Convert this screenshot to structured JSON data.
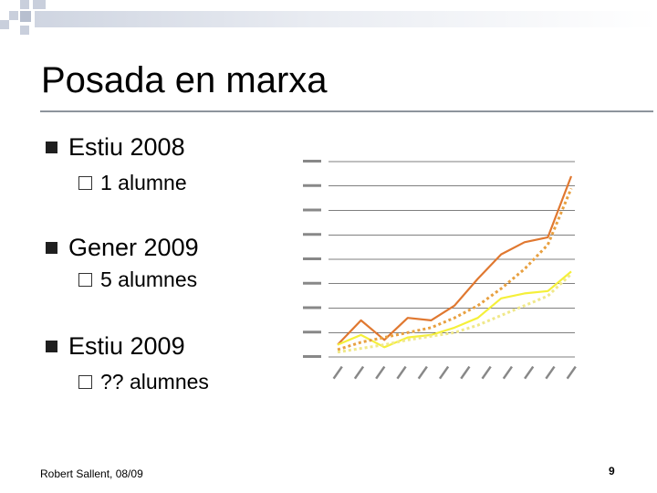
{
  "slide": {
    "title": "Posada en marxa",
    "bullets": [
      {
        "text": "Estiu 2008",
        "sub": "1 alumne"
      },
      {
        "text": "Gener 2009",
        "sub": "5 alumnes"
      },
      {
        "text": "Estiu 2009",
        "sub": "?? alumnes"
      }
    ],
    "footer": "Robert Sallent,  08/09",
    "page_number": "9"
  },
  "colors": {
    "orange": "#e07830",
    "yellow": "#f5f03a",
    "orange_dotted": "#e8a040",
    "yellow_dotted": "#f0e88a",
    "grid": "#000000"
  },
  "chart_data": {
    "type": "line",
    "note_labels": "axis tick labels are too small to read in the screenshot",
    "y_tick_count": 9,
    "x_count": 12,
    "grid": true,
    "series": [
      {
        "style": "solid",
        "color": "orange",
        "values": [
          0.5,
          1.5,
          0.7,
          1.6,
          1.5,
          2.1,
          3.2,
          4.2,
          4.7,
          4.9,
          7.4
        ]
      },
      {
        "style": "solid",
        "color": "yellow",
        "values": [
          0.5,
          0.9,
          0.4,
          0.8,
          0.9,
          1.2,
          1.6,
          2.4,
          2.6,
          2.7,
          3.5
        ]
      },
      {
        "style": "dotted",
        "color": "orange_dotted",
        "values": [
          0.3,
          0.6,
          0.8,
          1.0,
          1.2,
          1.6,
          2.1,
          2.8,
          3.6,
          4.6,
          6.9
        ]
      },
      {
        "style": "dotted",
        "color": "yellow_dotted",
        "values": [
          0.2,
          0.35,
          0.5,
          0.7,
          0.85,
          1.0,
          1.3,
          1.7,
          2.1,
          2.5,
          3.4
        ]
      }
    ]
  }
}
